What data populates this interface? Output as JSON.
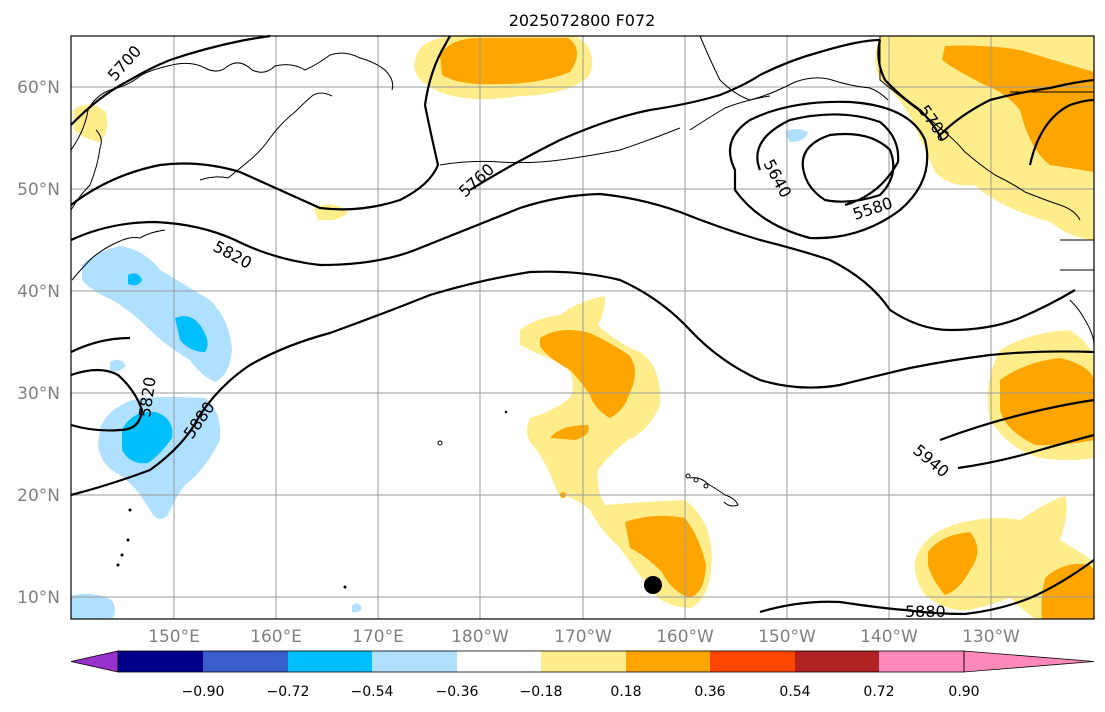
{
  "title": "2025072800 F072",
  "lat_labels": [
    "60°N",
    "50°N",
    "40°N",
    "30°N",
    "20°N",
    "10°N"
  ],
  "lon_labels": [
    "150°E",
    "160°E",
    "170°E",
    "180°W",
    "170°W",
    "160°W",
    "150°W",
    "140°W",
    "130°W"
  ],
  "contour_labels": [
    "5700",
    "5760",
    "5820",
    "5820",
    "5880",
    "5640",
    "5580",
    "5700",
    "5940",
    "5880"
  ],
  "colorbar": {
    "ticks": [
      "−0.90",
      "−0.72",
      "−0.54",
      "−0.36",
      "−0.18",
      "0.18",
      "0.36",
      "0.54",
      "0.72",
      "0.90"
    ],
    "colors": [
      "#9932cc",
      "#00008b",
      "#3a5fcd",
      "#00bfff",
      "#b0e0ff",
      "#ffffff",
      "#ffec8b",
      "#ffa500",
      "#ff4500",
      "#b22222",
      "#ff88bb"
    ]
  },
  "marker": "storm-center-dot"
}
